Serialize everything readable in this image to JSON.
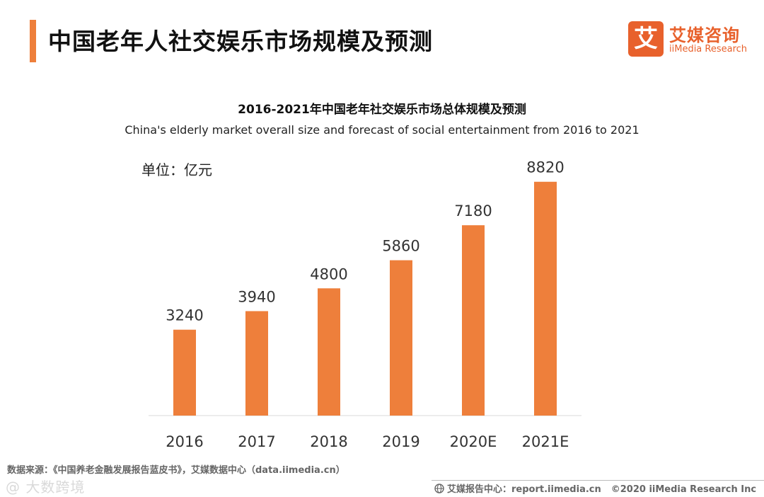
{
  "header": {
    "title": "中国老年人社交娱乐市场规模及预测",
    "logo_mark": "艾",
    "logo_cn": "艾媒咨询",
    "logo_en": "iiMedia Research"
  },
  "chart_data": {
    "type": "bar",
    "title": "2016-2021年中国老年社交娱乐市场总体规模及预测",
    "subtitle": "China's elderly market overall size and forecast of social entertainment from 2016 to 2021",
    "unit_label": "单位：亿元",
    "categories": [
      "2016",
      "2017",
      "2018",
      "2019",
      "2020E",
      "2021E"
    ],
    "values": [
      3240,
      3940,
      4800,
      5860,
      7180,
      8820
    ],
    "ylim": [
      0,
      9000
    ],
    "xlabel": "",
    "ylabel": "",
    "grid": false,
    "bar_color": "#EE7F3B"
  },
  "footer": {
    "source": "数据来源：《中国养老金融发展报告蓝皮书》，艾媒数据中心（data.iimedia.cn）",
    "report_center": "艾媒报告中心：report.iimedia.cn",
    "copyright": "©2020  iiMedia Research  Inc",
    "watermark": "@ 大数跨境"
  },
  "colors": {
    "accent": "#EE7F3B",
    "brand": "#E8612C"
  }
}
